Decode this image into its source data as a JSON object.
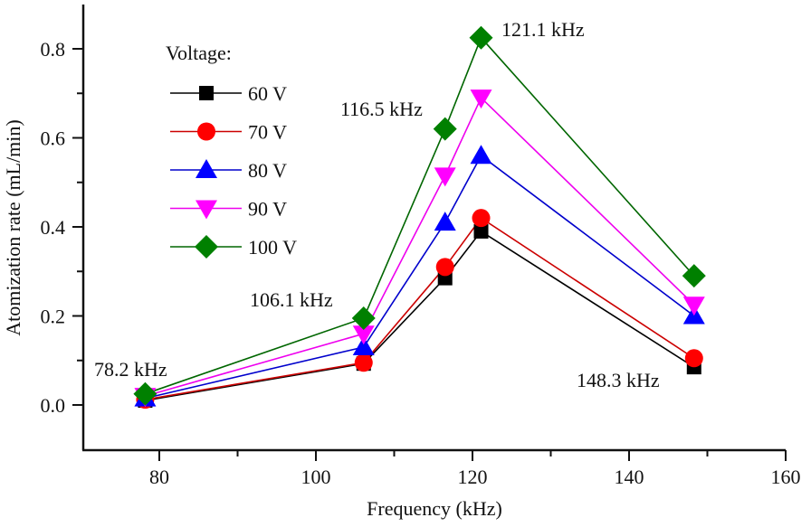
{
  "chart_data": {
    "type": "line",
    "title": "",
    "xlabel": "Frequency (kHz)",
    "ylabel": "Atomization rate (mL/min)",
    "xlim": [
      70,
      160
    ],
    "ylim": [
      -0.1,
      0.9
    ],
    "xticks": [
      80,
      100,
      120,
      140,
      160
    ],
    "xtick_labels": [
      "80",
      "100",
      "120",
      "140",
      "160"
    ],
    "xminor": [
      90,
      110,
      130,
      150
    ],
    "yticks": [
      0.0,
      0.2,
      0.4,
      0.6,
      0.8
    ],
    "ytick_labels": [
      "0.0",
      "0.2",
      "0.4",
      "0.6",
      "0.8"
    ],
    "yminor": [
      0.1,
      0.3,
      0.5,
      0.7
    ],
    "grid": false,
    "x": [
      78.2,
      106.1,
      116.5,
      121.1,
      148.3
    ],
    "legend_title": "Voltage:",
    "legend_position": "top-left",
    "series": [
      {
        "name": "60 V",
        "color": "#000000",
        "marker": "square",
        "values": [
          0.01,
          0.093,
          0.285,
          0.39,
          0.085
        ]
      },
      {
        "name": "70 V",
        "color": "#ff0000",
        "marker": "circle",
        "values": [
          0.012,
          0.095,
          0.31,
          0.42,
          0.105
        ]
      },
      {
        "name": "80 V",
        "color": "#0000ff",
        "marker": "triangle-up",
        "values": [
          0.015,
          0.13,
          0.41,
          0.56,
          0.2
        ]
      },
      {
        "name": "90 V",
        "color": "#ff00ff",
        "marker": "triangle-down",
        "values": [
          0.02,
          0.16,
          0.515,
          0.69,
          0.225
        ]
      },
      {
        "name": "100 V",
        "color": "#008000",
        "marker": "diamond",
        "values": [
          0.025,
          0.195,
          0.62,
          0.825,
          0.29
        ]
      }
    ],
    "line_colors": {
      "60 V": "#000000",
      "70 V": "#cc0000",
      "80 V": "#0000cc",
      "90 V": "#ee00ee",
      "100 V": "#006600"
    },
    "annotations": [
      {
        "text": "78.2 kHz",
        "x": 78.2
      },
      {
        "text": "106.1 kHz",
        "x": 106.1
      },
      {
        "text": "116.5 kHz",
        "x": 116.5
      },
      {
        "text": "121.1 kHz",
        "x": 121.1
      },
      {
        "text": "148.3 kHz",
        "x": 148.3
      }
    ]
  }
}
